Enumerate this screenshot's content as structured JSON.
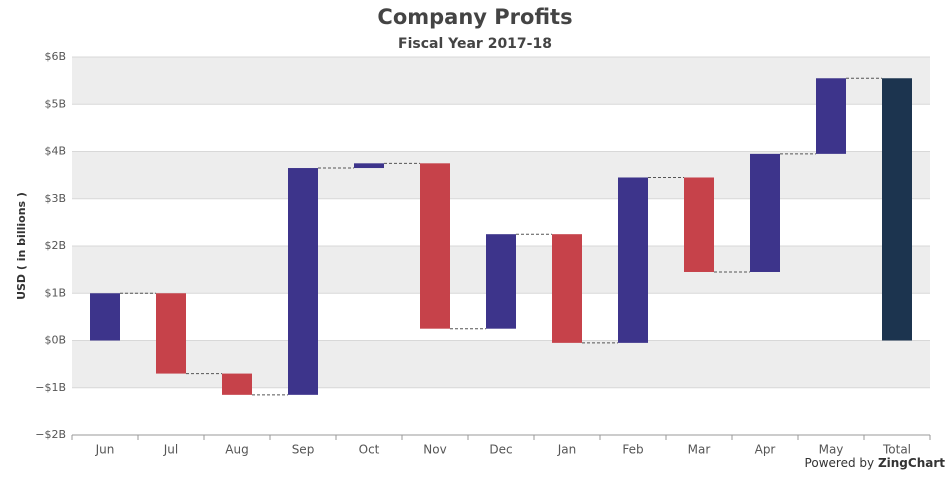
{
  "chart_data": {
    "type": "waterfall",
    "title": "Company Profits",
    "subtitle": "Fiscal Year 2017-18",
    "ylabel": "USD ( in billions )",
    "categories": [
      "Jun",
      "Jul",
      "Aug",
      "Sep",
      "Oct",
      "Nov",
      "Dec",
      "Jan",
      "Feb",
      "Mar",
      "Apr",
      "May"
    ],
    "values": [
      1,
      -1.7,
      -0.45,
      4.8,
      0.1,
      -3.5,
      2,
      -2.3,
      3.5,
      -2,
      2.5,
      1.6
    ],
    "total": {
      "category": "Total",
      "value": 5.55
    },
    "colors": {
      "increase": "#3d348b",
      "decrease": "#c6424a",
      "total": "#1c344f"
    },
    "ylim": [
      -2,
      6
    ],
    "yticks": [
      {
        "value": -2,
        "label": "−$2B"
      },
      {
        "value": -1,
        "label": "−$1B"
      },
      {
        "value": 0,
        "label": "$0B"
      },
      {
        "value": 1,
        "label": "$1B"
      },
      {
        "value": 2,
        "label": "$2B"
      },
      {
        "value": 3,
        "label": "$3B"
      },
      {
        "value": 4,
        "label": "$4B"
      },
      {
        "value": 5,
        "label": "$5B"
      },
      {
        "value": 6,
        "label": "$6B"
      }
    ],
    "grid": true,
    "credit": [
      "Powered by",
      "ZingChart"
    ]
  }
}
